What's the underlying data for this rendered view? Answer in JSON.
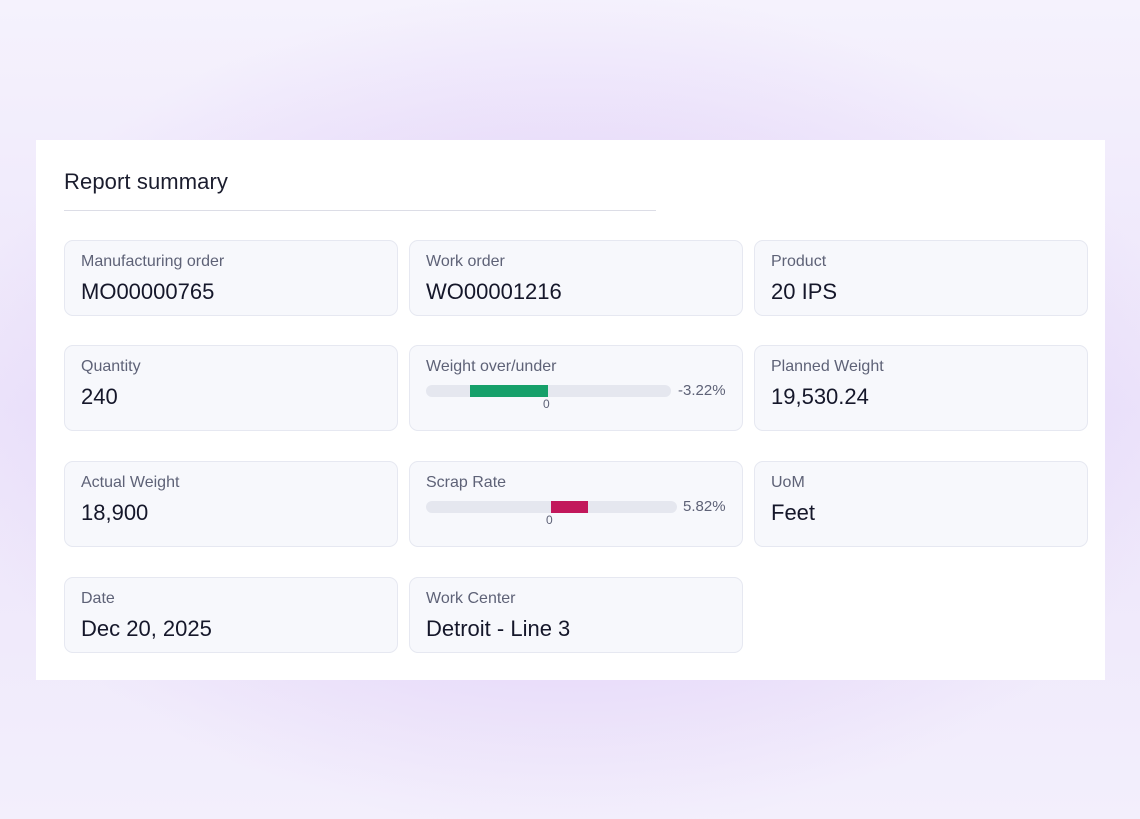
{
  "report": {
    "title": "Report summary",
    "fields": {
      "manufacturing_order": {
        "label": "Manufacturing order",
        "value": "MO00000765"
      },
      "work_order": {
        "label": "Work order",
        "value": "WO00001216"
      },
      "product": {
        "label": "Product",
        "value": "20 IPS"
      },
      "quantity": {
        "label": "Quantity",
        "value": "240"
      },
      "weight_over_under": {
        "label": "Weight over/under",
        "value_text": "-3.22%",
        "value": -3.22,
        "zero_label": "0",
        "bar_color": "#16a06a"
      },
      "planned_weight": {
        "label": "Planned Weight",
        "value": "19,530.24"
      },
      "actual_weight": {
        "label": "Actual Weight",
        "value": "18,900"
      },
      "scrap_rate": {
        "label": "Scrap Rate",
        "value_text": "5.82%",
        "value": 5.82,
        "zero_label": "0",
        "bar_color": "#c2185b"
      },
      "uom": {
        "label": "UoM",
        "value": "Feet"
      },
      "date": {
        "label": "Date",
        "value": "Dec 20, 2025"
      },
      "work_center": {
        "label": "Work Center",
        "value": "Detroit - Line 3"
      }
    }
  }
}
